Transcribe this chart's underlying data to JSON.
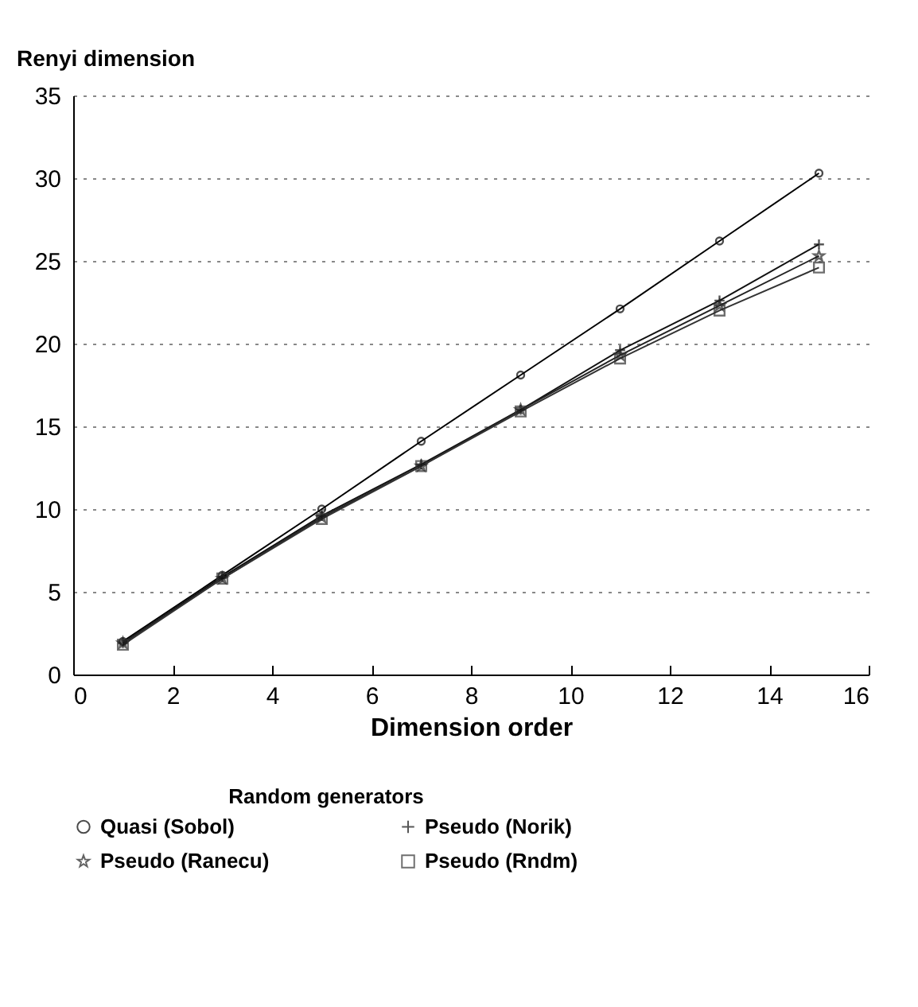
{
  "chart_data": {
    "type": "line",
    "ylabel": "Renyi dimension",
    "xlabel": "Dimension order",
    "legend_title": "Random generators",
    "x": [
      1,
      3,
      5,
      7,
      9,
      11,
      13,
      15
    ],
    "series": [
      {
        "name": "Quasi (Sobol)",
        "color": "#000000",
        "marker": "circle",
        "values": [
          2.0,
          6.0,
          10.0,
          14.1,
          18.1,
          22.1,
          26.2,
          30.3
        ]
      },
      {
        "name": "Pseudo (Norik)",
        "color": "#111111",
        "marker": "cross",
        "values": [
          1.9,
          5.9,
          9.6,
          12.7,
          16.0,
          19.6,
          22.6,
          26.0
        ]
      },
      {
        "name": "Pseudo (Ranecu)",
        "color": "#222222",
        "marker": "star",
        "values": [
          1.9,
          5.8,
          9.5,
          12.6,
          16.0,
          19.3,
          22.3,
          25.3
        ]
      },
      {
        "name": "Pseudo (Rndm)",
        "color": "#333333",
        "marker": "square",
        "values": [
          1.8,
          5.8,
          9.4,
          12.6,
          15.9,
          19.1,
          22.0,
          24.6
        ]
      }
    ],
    "xlim": [
      0,
      16
    ],
    "xticks": [
      0,
      2,
      4,
      6,
      8,
      10,
      12,
      14,
      16
    ],
    "ylim": [
      0,
      35
    ],
    "yticks": [
      0,
      5,
      10,
      15,
      20,
      25,
      30,
      35
    ],
    "grid": "y",
    "legend": "bottom",
    "line_style": "solid"
  }
}
